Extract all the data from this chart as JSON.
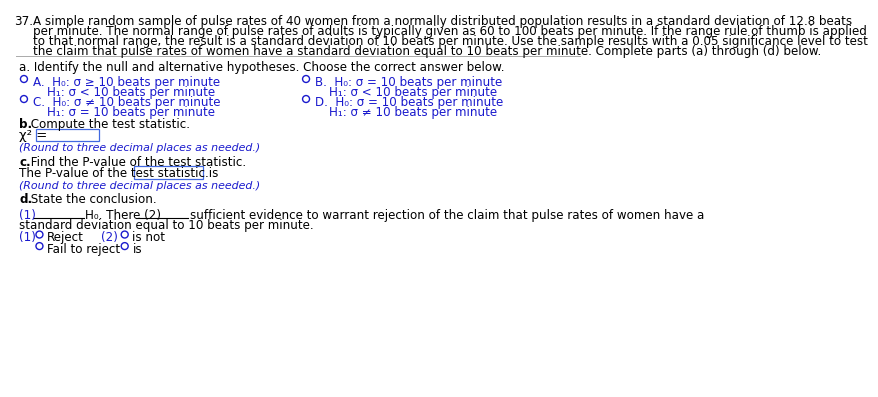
{
  "bg_color": "#ffffff",
  "text_color": "#000000",
  "blue_color": "#1a1acd",
  "line_color": "#aaaaaa",
  "question_number": "37.",
  "q_line1": "A simple random sample of pulse rates of 40 women from a normally distributed population results in a standard deviation of 12.8 beats",
  "q_line2": "per minute. The normal range of pulse rates of adults is typically given as 60 to 100 beats per minute. If the range rule of thumb is applied",
  "q_line3": "to that normal range, the result is a standard deviation of 10 beats per minute. Use the sample results with a 0.05 significance level to test",
  "q_line4": "the claim that pulse rates of women have a standard deviation equal to 10 beats per minute. Complete parts (a) through (d) below.",
  "part_a_label": "a. Identify the null and alternative hypotheses. Choose the correct answer below.",
  "oA_1": "A.  H₀: σ ≥ 10 beats per minute",
  "oA_2": "H₁: σ < 10 beats per minute",
  "oB_1": "B.  H₀: σ = 10 beats per minute",
  "oB_2": "H₁: σ < 10 beats per minute",
  "oC_1": "C.  H₀: σ ≠ 10 beats per minute",
  "oC_2": "H₁: σ = 10 beats per minute",
  "oD_1": "D.  H₀: σ = 10 beats per minute",
  "oD_2": "H₁: σ ≠ 10 beats per minute",
  "part_b_bold": "b.",
  "part_b_rest": " Compute the test statistic.",
  "chi_label": "χ² =",
  "round_note": "(Round to three decimal places as needed.)",
  "part_c_bold": "c.",
  "part_c_rest": " Find the P-value of the test statistic.",
  "pvalue_pre": "The P-value of the test statistic is",
  "pvalue_post": ".",
  "part_d_bold": "d.",
  "part_d_rest": " State the conclusion.",
  "concl_1": "(1)",
  "concl_line1": " H₀. There (2)",
  "concl_line2": " sufficient evidence to warrant rejection of the claim that pulse rates of women have a",
  "concl_line3": "standard deviation equal to 10 beats per minute.",
  "c1_label": "(1)",
  "c1_opt1": "Reject",
  "c1_opt2": "Fail to reject",
  "c2_label": "(2)",
  "c2_opt1": "is not",
  "c2_opt2": "is",
  "box_color": "#4169e1",
  "font_size": 8.6,
  "small_font": 7.9
}
